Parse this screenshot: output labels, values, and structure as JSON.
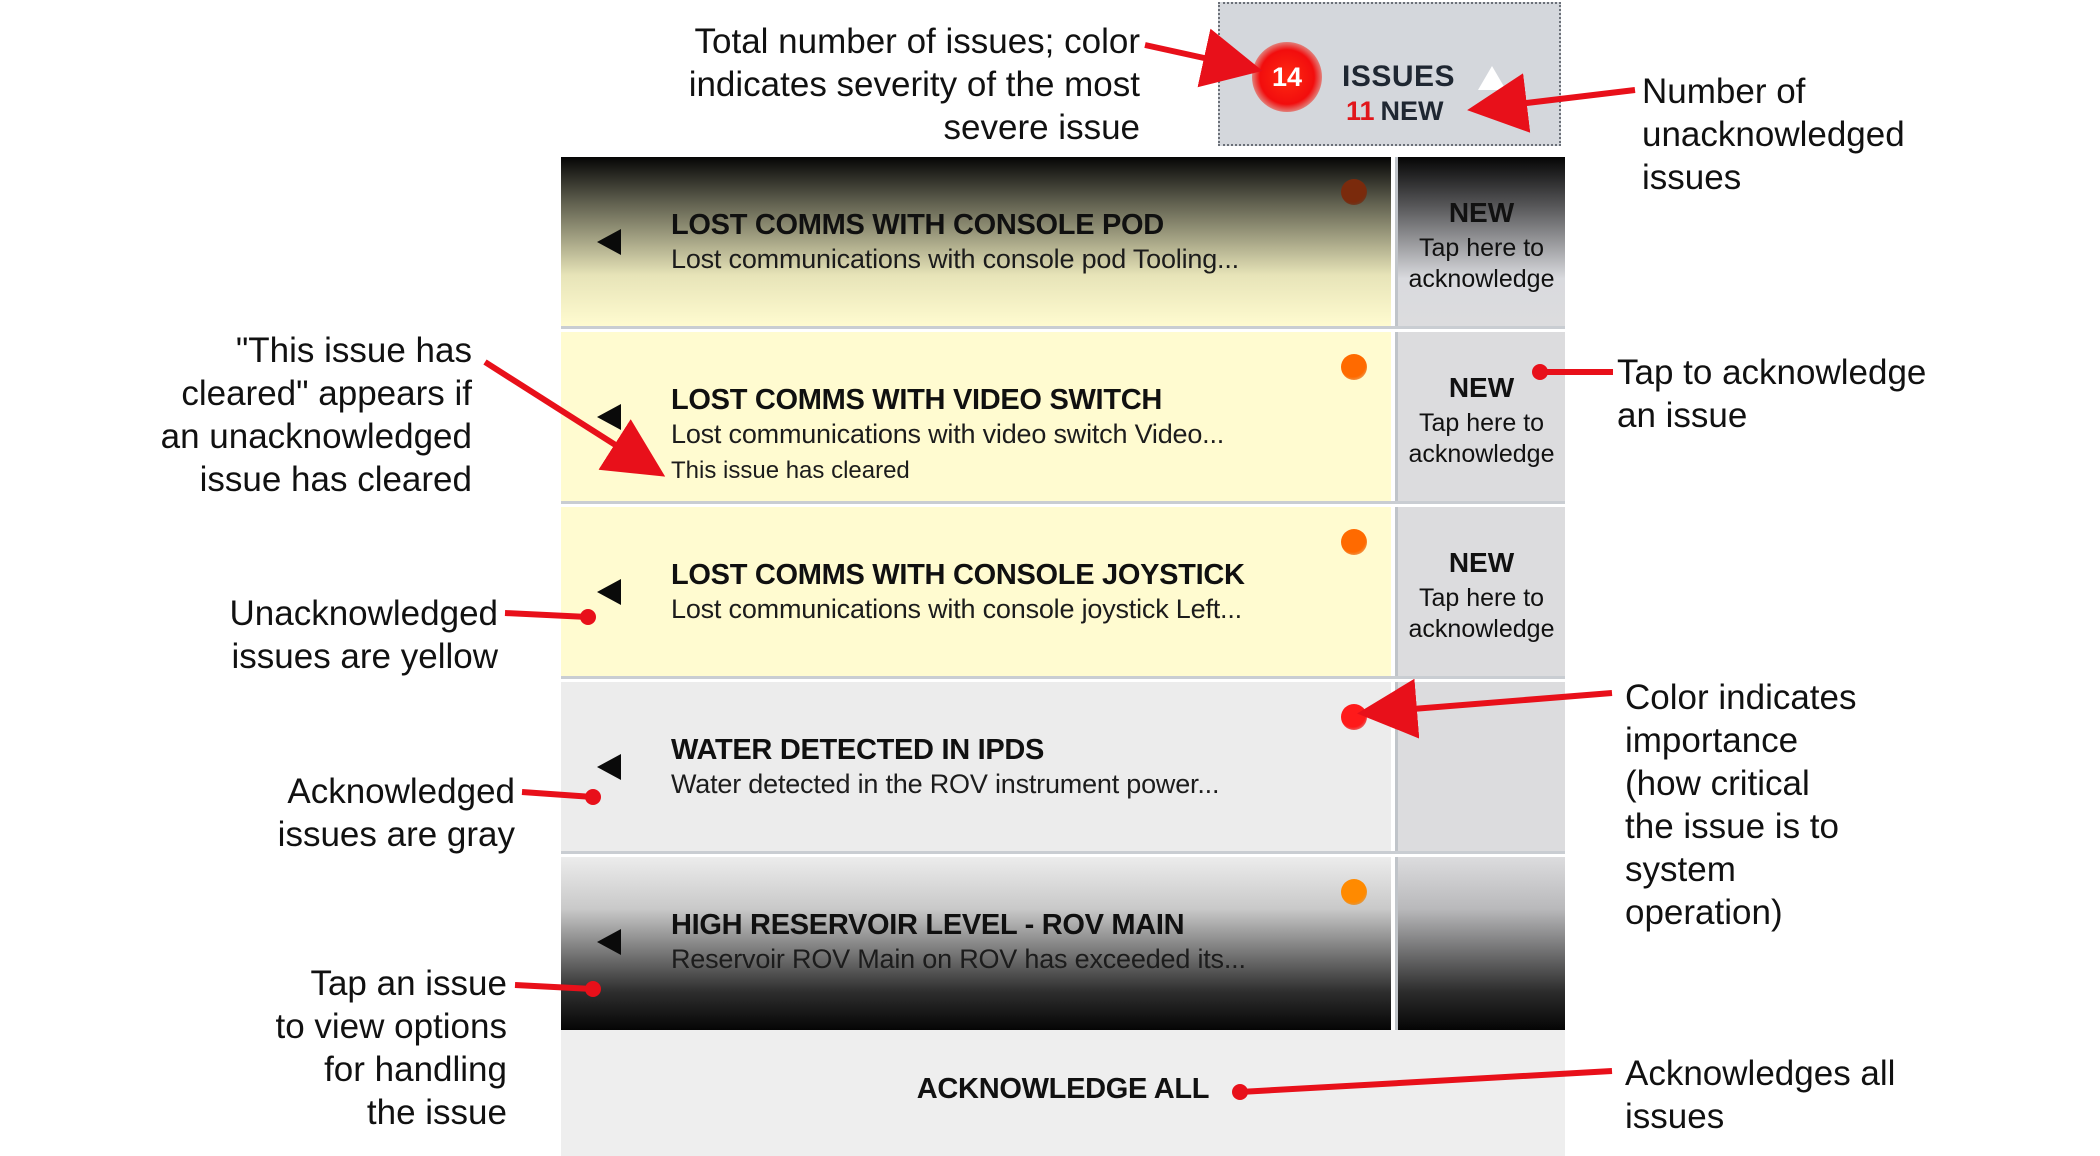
{
  "header": {
    "issue_count": "14",
    "title": "ISSUES",
    "new_count": "11",
    "new_label": "NEW"
  },
  "issues": [
    {
      "title": "LOST COMMS WITH CONSOLE POD",
      "description": "Lost communications with console pod Tooling...",
      "state": "unacknowledged",
      "severity_color": "#7a2a0c",
      "ack_new": "NEW",
      "ack_hint_1": "Tap here to",
      "ack_hint_2": "acknowledge"
    },
    {
      "title": "LOST COMMS WITH VIDEO SWITCH",
      "description": "Lost communications with video switch Video...",
      "cleared_text": "This issue has cleared",
      "state": "unacknowledged",
      "severity_color": "#ff6a00",
      "ack_new": "NEW",
      "ack_hint_1": "Tap here to",
      "ack_hint_2": "acknowledge"
    },
    {
      "title": "LOST COMMS WITH CONSOLE JOYSTICK",
      "description": "Lost communications with console joystick Left...",
      "state": "unacknowledged",
      "severity_color": "#ff6a00",
      "ack_new": "NEW",
      "ack_hint_1": "Tap here to",
      "ack_hint_2": "acknowledge"
    },
    {
      "title": "WATER DETECTED IN IPDS",
      "description": "Water detected in the ROV instrument power...",
      "state": "acknowledged",
      "severity_color": "#ff1a1a"
    },
    {
      "title": "HIGH RESERVOIR LEVEL - ROV MAIN",
      "description": "Reservoir ROV Main on ROV has exceeded its...",
      "state": "acknowledged",
      "severity_color": "#ff8a00"
    }
  ],
  "acknowledge_all_label": "ACKNOWLEDGE ALL",
  "callouts": {
    "total_issues": [
      "Total number of issues; color",
      "indicates severity of the most",
      "severe issue"
    ],
    "unacknowledged_count": [
      "Number of",
      "unacknowledged",
      "issues"
    ],
    "issue_cleared": [
      "\"This issue has",
      "cleared\" appears if",
      "an unacknowledged",
      "issue has cleared"
    ],
    "tap_to_ack": [
      "Tap to acknowledge",
      "an issue"
    ],
    "yellow_issues": [
      "Unacknowledged",
      "issues are yellow"
    ],
    "gray_issues": [
      "Acknowledged",
      "issues are gray"
    ],
    "color_importance": [
      "Color indicates",
      "importance",
      "(how critical",
      "the issue is to",
      "system",
      "operation)"
    ],
    "tap_issue": [
      "Tap an issue",
      "to view options",
      "for handling",
      "the issue"
    ],
    "ack_all": [
      "Acknowledges all",
      "issues"
    ]
  },
  "colors": {
    "annotation_arrow": "#e8101a",
    "unacknowledged_bg": "#fffbd0",
    "acknowledged_bg": "#ececec"
  }
}
